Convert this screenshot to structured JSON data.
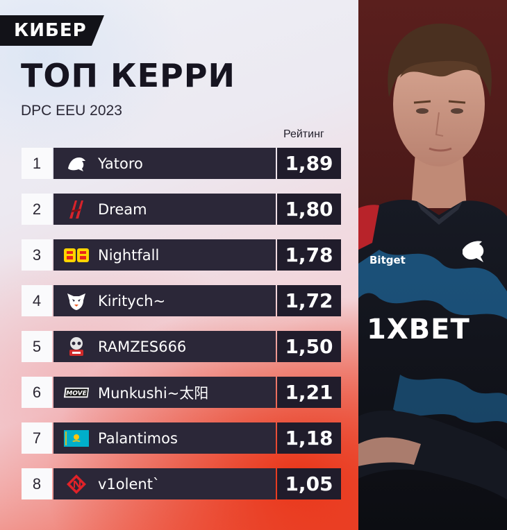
{
  "brand": {
    "logo_text": "КИБЕР"
  },
  "header": {
    "title": "ТОП КЕРРИ",
    "subtitle": "DPC EEU 2023",
    "rating_label": "Рейтинг"
  },
  "players": [
    {
      "rank": "1",
      "name": "Yatoro",
      "rating": "1,89",
      "team_icon": "team-spirit-icon"
    },
    {
      "rank": "2",
      "name": "Dream",
      "rating": "1,80",
      "team_icon": "team-dream-icon"
    },
    {
      "rank": "3",
      "name": "Nightfall",
      "rating": "1,78",
      "team_icon": "betboom-icon"
    },
    {
      "rank": "4",
      "name": "Kiritych~",
      "rating": "1,72",
      "team_icon": "virtus-pro-icon"
    },
    {
      "rank": "5",
      "name": "RAMZES666",
      "rating": "1,50",
      "team_icon": "9pandas-icon"
    },
    {
      "rank": "6",
      "name": "Munkushi~太阳",
      "rating": "1,21",
      "team_icon": "move-icon"
    },
    {
      "rank": "7",
      "name": "Palantimos",
      "rating": "1,18",
      "team_icon": "kazakhstan-flag-icon"
    },
    {
      "rank": "8",
      "name": "v1olent`",
      "rating": "1,05",
      "team_icon": "nemiga-icon"
    }
  ],
  "photo": {
    "jersey_sponsor": "1XBET",
    "jersey_brand": "Bitget"
  },
  "colors": {
    "row_dark": "#2b2738",
    "rating_bg": "#201c2b",
    "accent_red": "#e8341c"
  }
}
